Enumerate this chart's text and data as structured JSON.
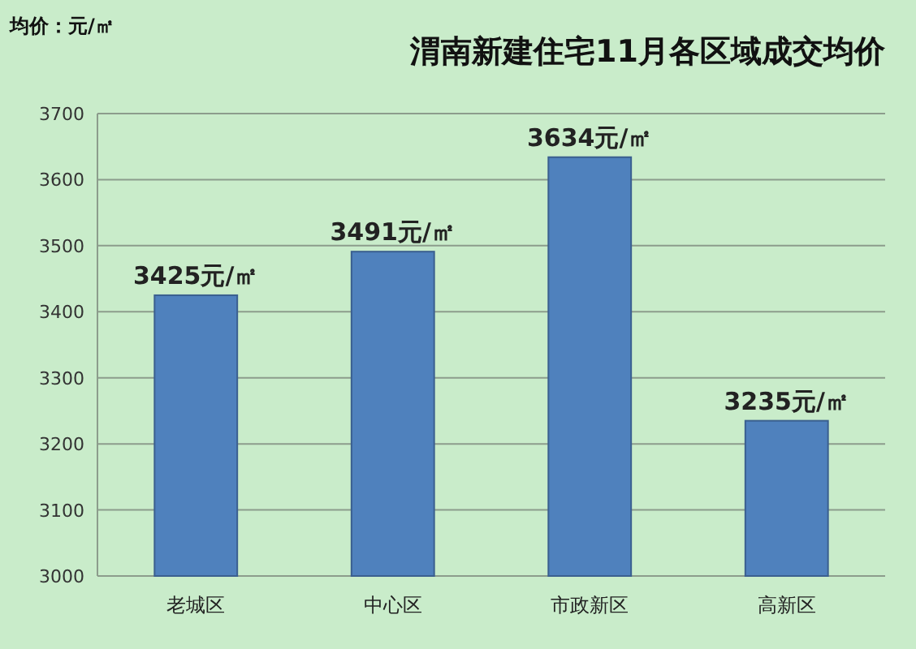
{
  "chart_data": {
    "type": "bar",
    "title": "渭南新建住宅11月各区域成交均价",
    "ylabel": "均价：元/㎡",
    "categories": [
      "老城区",
      "中心区",
      "市政新区",
      "高新区"
    ],
    "values": [
      3425,
      3491,
      3634,
      3235
    ],
    "value_labels": [
      "3425元/㎡",
      "3491元/㎡",
      "3634元/㎡",
      "3235元/㎡"
    ],
    "color": "#4f81bd",
    "ylim": [
      3000,
      3700
    ],
    "yticks": [
      3000,
      3100,
      3200,
      3300,
      3400,
      3500,
      3600,
      3700
    ],
    "grid": "y"
  }
}
